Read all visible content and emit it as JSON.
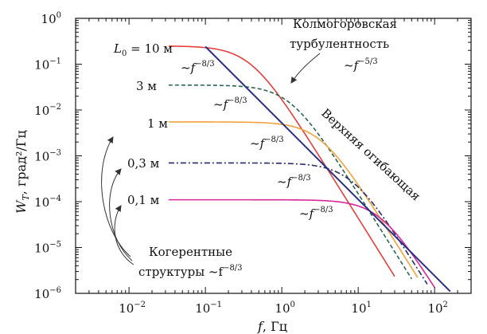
{
  "chart_data": {
    "type": "line",
    "xlabel_var": "f",
    "xlabel_unit": ", Гц",
    "ylabel_var": "W",
    "ylabel_sub": "T",
    "ylabel_unit": ", град²/Гц",
    "x_scale": "log",
    "y_scale": "log",
    "xlim": [
      0.002,
      300
    ],
    "ylim": [
      1e-06,
      1
    ],
    "x_ticks": [
      {
        "value": 0.01,
        "mant": "10",
        "exp": "−2"
      },
      {
        "value": 0.1,
        "mant": "10",
        "exp": "−1"
      },
      {
        "value": 1,
        "mant": "10",
        "exp": "0"
      },
      {
        "value": 10,
        "mant": "10",
        "exp": "1"
      },
      {
        "value": 100,
        "mant": "10",
        "exp": "2"
      }
    ],
    "y_ticks": [
      {
        "value": 1,
        "mant": "10",
        "exp": "0"
      },
      {
        "value": 0.1,
        "mant": "10",
        "exp": "−1"
      },
      {
        "value": 0.01,
        "mant": "10",
        "exp": "−2"
      },
      {
        "value": 0.001,
        "mant": "10",
        "exp": "−3"
      },
      {
        "value": 0.0001,
        "mant": "10",
        "exp": "−4"
      },
      {
        "value": 1e-05,
        "mant": "10",
        "exp": "−5"
      },
      {
        "value": 1e-06,
        "mant": "10",
        "exp": "−6"
      }
    ],
    "grid": false,
    "series": [
      {
        "name": "L₀ = 10 м",
        "color": "#e2403c",
        "dash": "solid",
        "plateau": 0.25,
        "f_knee": 0.39,
        "f_start": 0.033,
        "f_end": 30
      },
      {
        "name": "3 м",
        "color": "#2a6650",
        "dash": "dashed",
        "plateau": 0.035,
        "f_knee": 1.3,
        "f_start": 0.033,
        "f_end": 50
      },
      {
        "name": "1 м",
        "color": "#f0a33c",
        "dash": "solid",
        "plateau": 0.0055,
        "f_knee": 3.2,
        "f_start": 0.033,
        "f_end": 60
      },
      {
        "name": "0,3 м",
        "color": "#252a6e",
        "dash": "dashdot",
        "plateau": 0.0007,
        "f_knee": 8.2,
        "f_start": 0.033,
        "f_end": 80
      },
      {
        "name": "0,1 м",
        "color": "#d6279a",
        "dash": "solid",
        "plateau": 0.00011,
        "f_knee": 19.5,
        "f_start": 0.033,
        "f_end": 100
      }
    ],
    "envelope": {
      "name": "Верхняя огибающая",
      "color": "#2b2f82",
      "coef": 0.0052,
      "exponent": -1.6667,
      "f_start": 0.1,
      "f_end": 160
    },
    "annotations": {
      "kolmogorov_line1": "Колмогоровская",
      "kolmogorov_line2": "турбулентность",
      "kolmogorov_slope_base": "~f",
      "kolmogorov_slope_exp": "−5/3",
      "envelope_label": "Верхняя огибающая",
      "coherent_line1": "Когерентные",
      "coherent_line2_text": "структуры ~f",
      "coherent_line2_exp": "−8/3",
      "slope_base": "~f",
      "slope_exp": "−8/3",
      "l0_prefix": "L",
      "l0_sub": "0",
      "l0_rest": " = 10 м",
      "label_3m": "3 м",
      "label_1m": "1 м",
      "label_03m": "0,3 м",
      "label_01m": "0,1 м"
    }
  }
}
